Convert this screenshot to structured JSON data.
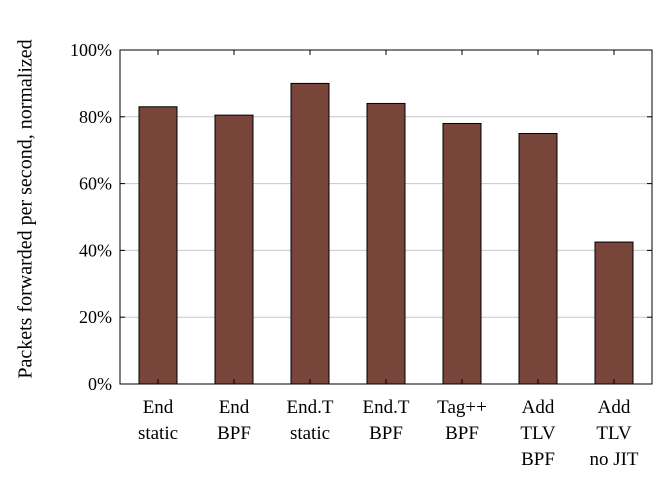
{
  "chart_data": {
    "type": "bar",
    "categories": [
      [
        "End",
        "static"
      ],
      [
        "End",
        "BPF"
      ],
      [
        "End.T",
        "static"
      ],
      [
        "End.T",
        "BPF"
      ],
      [
        "Tag++",
        "BPF"
      ],
      [
        "Add",
        "TLV",
        "BPF"
      ],
      [
        "Add",
        "TLV",
        "no JIT"
      ]
    ],
    "values": [
      83,
      80.5,
      90,
      84,
      78,
      75,
      42.5
    ],
    "ylabel": "Packets forwarded per second, normalized",
    "xlabel": "",
    "ylim": [
      0,
      100
    ],
    "yticks": [
      0,
      20,
      40,
      60,
      80,
      100
    ],
    "ytick_labels": [
      "0%",
      "20%",
      "40%",
      "60%",
      "80%",
      "100%"
    ],
    "grid": "horizontal",
    "bar_color": "#78453B"
  }
}
